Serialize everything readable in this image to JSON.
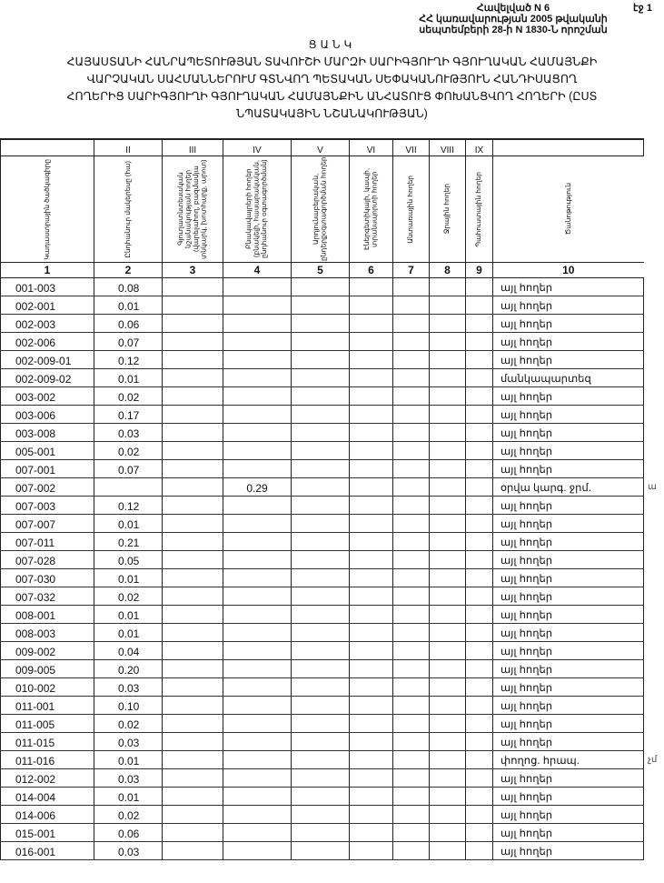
{
  "header": {
    "annex": "Հավելված N 6",
    "decree_line1": "ՀՀ կառավարության 2005 թվականի",
    "decree_line2": "սեպտեմբերի 28-ի N 1830-Ն որոշման",
    "page": "էջ 1"
  },
  "list_title": "ՑԱՆԿ",
  "title_lines": [
    "ՀԱՅԱՍՏԱՆԻ ՀԱՆՐԱՊԵՏՈՒԹՅԱՆ ՏԱՎՈՒՇԻ ՄԱՐԶԻ ՍԱՐԻԳՅՈՒՂԻ ԳՅՈՒՂԱԿԱՆ ՀԱՄԱՅՆՔԻ",
    "ՎԱՐՉԱԿԱՆ ՍԱՀՄԱՆՆԵՐՈՒՄ ԳՏՆՎՈՂ ՊԵՏԱԿԱՆ ՍԵՓԱԿԱՆՈՒԹՅՈՒՆ ՀԱՆԴԻՍԱՑՈՂ",
    "ՀՈՂԵՐԻՑ ՍԱՐԻԳՅՈՒՂԻ ԳՅՈՒՂԱԿԱՆ ՀԱՄԱՅՆՔԻՆ ԱՆՀԱՏՈՒՑ ՓՈԽԱՆՑՎՈՂ ՀՈՂԵՐԻ (ԸՍՏ",
    "ՆՊԱՏԱԿԱՅԻՆ ՆՇԱՆԱԿՈՒԹՅԱՆ)"
  ],
  "table": {
    "roman": [
      "",
      "II",
      "III",
      "IV",
      "V",
      "VI",
      "VII",
      "VIII",
      "IX",
      ""
    ],
    "headers": [
      "Կադաստրային ծածկագիրը",
      "Ընդհանուր մակերեսը (հա)",
      "Գյուղատնտեսական նշանակության հողեր (վարելահող, բազմամյա տնկարկ, խոտհարք, արոտ)",
      "Բնակավայրերի հողեր (բնակելի, հասարակական, ընդհանուր օգտագործման)",
      "Արդյունաբերական, ընդերքօգտագործման հողեր",
      "Էներգետիկայի, կապի, տրանսպորտի հողեր",
      "Անտառային հողեր",
      "Ջրային հողեր",
      "Պահուստային հողեր",
      "Ծանոթություն"
    ],
    "numbers": [
      "1",
      "2",
      "3",
      "4",
      "5",
      "6",
      "7",
      "8",
      "9",
      "10"
    ],
    "rows": [
      {
        "code": "001-003",
        "area": "0.08",
        "c4": "",
        "note": "այլ հողեր"
      },
      {
        "code": "002-001",
        "area": "0.01",
        "c4": "",
        "note": "այլ հողեր"
      },
      {
        "code": "002-003",
        "area": "0.06",
        "c4": "",
        "note": "այլ հողեր"
      },
      {
        "code": "002-006",
        "area": "0.07",
        "c4": "",
        "note": "այլ հողեր"
      },
      {
        "code": "002-009-01",
        "area": "0.12",
        "c4": "",
        "note": "այլ հողեր"
      },
      {
        "code": "002-009-02",
        "area": "0.01",
        "c4": "",
        "note": "մանկապարտեզ"
      },
      {
        "code": "003-002",
        "area": "0.02",
        "c4": "",
        "note": "այլ հողեր"
      },
      {
        "code": "003-006",
        "area": "0.17",
        "c4": "",
        "note": "այլ հողեր"
      },
      {
        "code": "003-008",
        "area": "0.03",
        "c4": "",
        "note": "այլ հողեր"
      },
      {
        "code": "005-001",
        "area": "0.02",
        "c4": "",
        "note": "այլ հողեր"
      },
      {
        "code": "007-001",
        "area": "0.07",
        "c4": "",
        "note": "այլ հողեր"
      },
      {
        "code": "007-002",
        "area": "",
        "c4": "0.29",
        "note": "օրվա կարգ. ջրմ.",
        "mark": "ա"
      },
      {
        "code": "007-003",
        "area": "0.12",
        "c4": "",
        "note": "այլ հողեր"
      },
      {
        "code": "007-007",
        "area": "0.01",
        "c4": "",
        "note": "այլ հողեր"
      },
      {
        "code": "007-011",
        "area": "0.21",
        "c4": "",
        "note": "այլ հողեր"
      },
      {
        "code": "007-028",
        "area": "0.05",
        "c4": "",
        "note": "այլ հողեր"
      },
      {
        "code": "007-030",
        "area": "0.01",
        "c4": "",
        "note": "այլ հողեր"
      },
      {
        "code": "007-032",
        "area": "0.02",
        "c4": "",
        "note": "այլ հողեր"
      },
      {
        "code": "008-001",
        "area": "0.01",
        "c4": "",
        "note": "այլ հողեր"
      },
      {
        "code": "008-003",
        "area": "0.01",
        "c4": "",
        "note": "այլ հողեր"
      },
      {
        "code": "009-002",
        "area": "0.04",
        "c4": "",
        "note": "այլ հողեր"
      },
      {
        "code": "009-005",
        "area": "0.20",
        "c4": "",
        "note": "այլ հողեր"
      },
      {
        "code": "010-002",
        "area": "0.03",
        "c4": "",
        "note": "այլ հողեր"
      },
      {
        "code": "011-001",
        "area": "0.10",
        "c4": "",
        "note": "այլ հողեր"
      },
      {
        "code": "011-005",
        "area": "0.02",
        "c4": "",
        "note": "այլ հողեր"
      },
      {
        "code": "011-015",
        "area": "0.03",
        "c4": "",
        "note": "այլ հողեր"
      },
      {
        "code": "011-016",
        "area": "0.01",
        "c4": "",
        "note": "փողոց. հրապ.",
        "mark": "չմ"
      },
      {
        "code": "012-002",
        "area": "0.03",
        "c4": "",
        "note": "այլ հողեր"
      },
      {
        "code": "014-004",
        "area": "0.01",
        "c4": "",
        "note": "այլ հողեր"
      },
      {
        "code": "014-006",
        "area": "0.02",
        "c4": "",
        "note": "այլ հողեր"
      },
      {
        "code": "015-001",
        "area": "0.06",
        "c4": "",
        "note": "այլ հողեր"
      },
      {
        "code": "016-001",
        "area": "0.03",
        "c4": "",
        "note": "այլ հողեր"
      }
    ]
  }
}
